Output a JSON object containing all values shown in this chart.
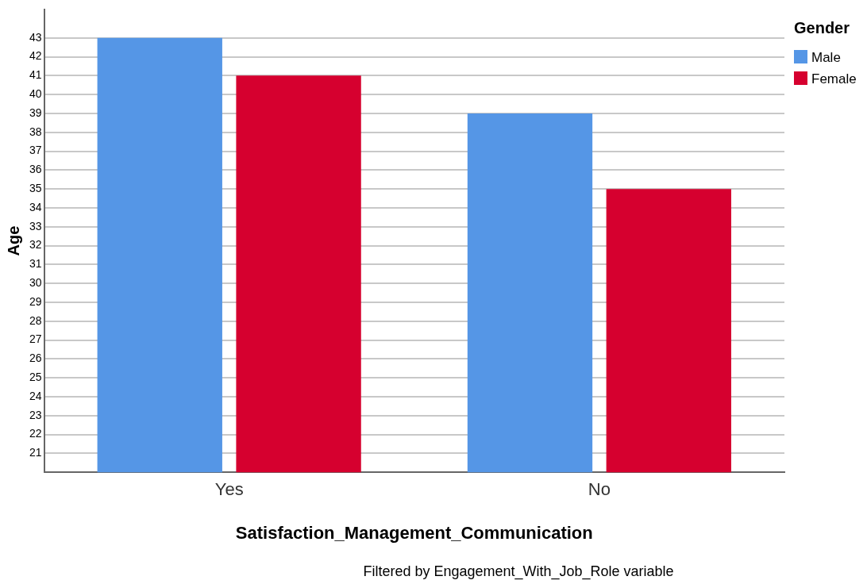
{
  "chart_data": {
    "type": "bar",
    "xlabel": "Satisfaction_Management_Communication",
    "ylabel": "Age",
    "legend_title": "Gender",
    "legend": "top right",
    "categories": [
      "Yes",
      "No"
    ],
    "series": [
      {
        "name": "Male",
        "color": "#5596e6",
        "values": [
          43,
          39
        ]
      },
      {
        "name": "Female",
        "color": "#d6002f",
        "values": [
          41,
          35
        ]
      }
    ],
    "ylim": [
      20,
      44.5
    ],
    "yticks": [
      21,
      22,
      23,
      24,
      25,
      26,
      27,
      28,
      29,
      30,
      31,
      32,
      33,
      34,
      35,
      36,
      37,
      38,
      39,
      40,
      41,
      42,
      43
    ],
    "grid": "y",
    "annotations": [
      "Filtered by Engagement_With_Job_Role variable"
    ]
  }
}
